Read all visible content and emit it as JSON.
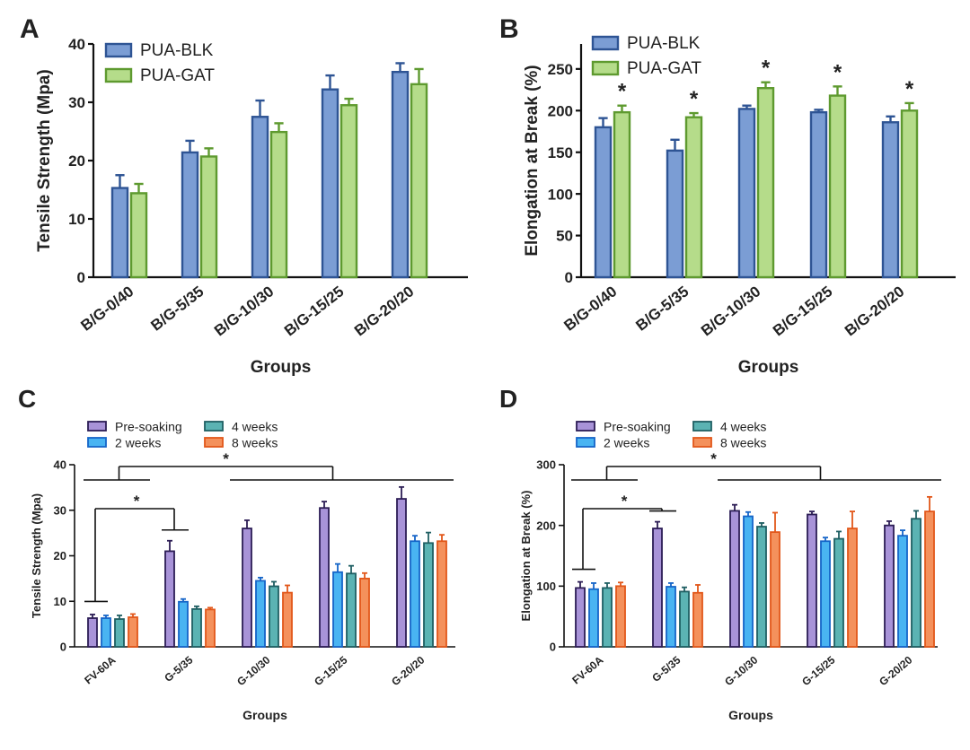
{
  "panels": [
    {
      "letter": "A",
      "chart_data": {
        "type": "bar",
        "ylabel": "Tensile Strength (Mpa)",
        "xlabel": "Groups",
        "ylim": [
          0,
          40
        ],
        "yticks": [
          0,
          10,
          20,
          30,
          40
        ],
        "categories": [
          "B/G-0/40",
          "B/G-5/35",
          "B/G-10/30",
          "B/G-15/25",
          "B/G-20/20"
        ],
        "series": [
          {
            "name": "PUA-BLK",
            "values": [
              15.3,
              21.4,
              27.5,
              32.2,
              35.2
            ],
            "errors": [
              2.2,
              2.0,
              2.8,
              2.4,
              1.5
            ]
          },
          {
            "name": "PUA-GAT",
            "values": [
              14.4,
              20.7,
              24.9,
              29.5,
              33.1
            ],
            "errors": [
              1.6,
              1.4,
              1.5,
              1.1,
              2.6
            ]
          }
        ],
        "legend": "top-left",
        "significance": []
      }
    },
    {
      "letter": "B",
      "chart_data": {
        "type": "bar",
        "ylabel": "Elongation at Break (%)",
        "xlabel": "Groups",
        "ylim": [
          0,
          280
        ],
        "yticks": [
          0,
          50,
          100,
          150,
          200,
          250
        ],
        "categories": [
          "B/G-0/40",
          "B/G-5/35",
          "B/G-10/30",
          "B/G-15/25",
          "B/G-20/20"
        ],
        "series": [
          {
            "name": "PUA-BLK",
            "values": [
              180,
              152,
              202,
              198,
              186
            ],
            "errors": [
              11,
              13,
              4,
              3,
              7
            ]
          },
          {
            "name": "PUA-GAT",
            "values": [
              198,
              192,
              227,
              218,
              200
            ],
            "errors": [
              8,
              5,
              7,
              11,
              9
            ]
          }
        ],
        "legend": "top-left",
        "significance": [
          {
            "label": "*",
            "category": 0
          },
          {
            "label": "*",
            "category": 1
          },
          {
            "label": "*",
            "category": 2
          },
          {
            "label": "*",
            "category": 3
          },
          {
            "label": "*",
            "category": 4
          }
        ]
      }
    },
    {
      "letter": "C",
      "chart_data": {
        "type": "bar",
        "ylabel": "Tensile Strength (Mpa)",
        "xlabel": "Groups",
        "ylim": [
          0,
          40
        ],
        "yticks": [
          0,
          10,
          20,
          30,
          40
        ],
        "categories": [
          "FV-60A",
          "G-5/35",
          "G-10/30",
          "G-15/25",
          "G-20/20"
        ],
        "series": [
          {
            "name": "Pre-soaking",
            "values": [
              6.3,
              21.0,
              26.0,
              30.5,
              32.5
            ],
            "errors": [
              0.8,
              2.3,
              1.8,
              1.4,
              2.6
            ]
          },
          {
            "name": "2 weeks",
            "values": [
              6.3,
              9.9,
              14.5,
              16.4,
              23.2
            ],
            "errors": [
              0.6,
              0.6,
              0.7,
              1.8,
              1.2
            ]
          },
          {
            "name": "4 weeks",
            "values": [
              6.1,
              8.3,
              13.3,
              16.1,
              22.8
            ],
            "errors": [
              0.8,
              0.6,
              1.0,
              1.7,
              2.3
            ]
          },
          {
            "name": "8 weeks",
            "values": [
              6.5,
              8.2,
              11.9,
              15.0,
              23.2
            ],
            "errors": [
              0.7,
              0.4,
              1.6,
              1.2,
              1.4
            ]
          }
        ],
        "legend": "top",
        "significance": [
          {
            "label": "*",
            "from": "FV-60A",
            "to": "G-5/35"
          },
          {
            "label": "*",
            "from": "FV-60A",
            "to": "G-10/30, G-15/25, G-20/20"
          }
        ]
      }
    },
    {
      "letter": "D",
      "chart_data": {
        "type": "bar",
        "ylabel": "Elongation at Break (%)",
        "xlabel": "Groups",
        "ylim": [
          0,
          300
        ],
        "yticks": [
          0,
          100,
          200,
          300
        ],
        "categories": [
          "FV-60A",
          "G-5/35",
          "G-10/30",
          "G-15/25",
          "G-20/20"
        ],
        "series": [
          {
            "name": "Pre-soaking",
            "values": [
              97,
              195,
              224,
              218,
              200
            ],
            "errors": [
              10,
              11,
              10,
              5,
              7
            ]
          },
          {
            "name": "2 weeks",
            "values": [
              95,
              99,
              215,
              174,
              183
            ],
            "errors": [
              10,
              6,
              7,
              6,
              9
            ]
          },
          {
            "name": "4 weeks",
            "values": [
              97,
              91,
              198,
              178,
              211
            ],
            "errors": [
              8,
              7,
              6,
              12,
              13
            ]
          },
          {
            "name": "8 weeks",
            "values": [
              100,
              89,
              189,
              195,
              223
            ],
            "errors": [
              6,
              13,
              32,
              28,
              24
            ]
          }
        ],
        "legend": "top",
        "significance": [
          {
            "label": "*",
            "from": "FV-60A",
            "to": "G-5/35"
          },
          {
            "label": "*",
            "from": "FV-60A",
            "to": "G-10/30, G-15/25, G-20/20"
          }
        ]
      }
    }
  ],
  "colors": {
    "PUA-BLK": {
      "fill": "#7b9dd4",
      "stroke": "#2e5494"
    },
    "PUA-GAT": {
      "fill": "#b5dc8a",
      "stroke": "#5e9a2f"
    },
    "Pre-soaking": {
      "fill": "#a893d8",
      "stroke": "#2c1d55"
    },
    "2 weeks": {
      "fill": "#49b4f2",
      "stroke": "#1565c8"
    },
    "4 weeks": {
      "fill": "#5bb3b3",
      "stroke": "#1f5f63"
    },
    "8 weeks": {
      "fill": "#f4915c",
      "stroke": "#e2571a"
    }
  }
}
